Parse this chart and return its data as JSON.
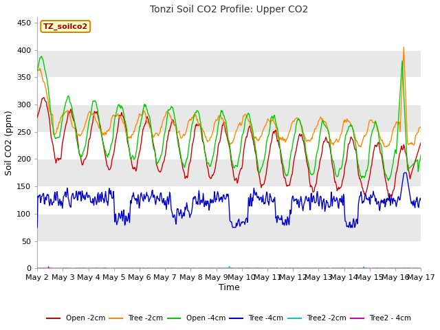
{
  "title": "Tonzi Soil CO2 Profile: Upper CO2",
  "xlabel": "Time",
  "ylabel": "Soil CO2 (ppm)",
  "annotation": "TZ_soilco2",
  "ylim": [
    0,
    460
  ],
  "yticks": [
    0,
    50,
    100,
    150,
    200,
    250,
    300,
    350,
    400,
    450
  ],
  "x_tick_labels": [
    "May 2",
    "May 3",
    "May 4",
    "May 5",
    "May 6",
    "May 7",
    "May 8",
    "May 9",
    "May 10",
    "May 11",
    "May 12",
    "May 13",
    "May 14",
    "May 15",
    "May 16",
    "May 17"
  ],
  "series": {
    "Open -2cm": {
      "color": "#cc0000",
      "lw": 1.0
    },
    "Tree -2cm": {
      "color": "#ff8800",
      "lw": 1.0
    },
    "Open -4cm": {
      "color": "#00cc00",
      "lw": 1.0
    },
    "Tree -4cm": {
      "color": "#0000cc",
      "lw": 1.0
    },
    "Tree2 -2cm": {
      "color": "#00cccc",
      "lw": 1.0
    },
    "Tree2 - 4cm": {
      "color": "#cc00cc",
      "lw": 1.0
    }
  },
  "band_colors": [
    "#ffffff",
    "#e8e8e8"
  ],
  "figsize": [
    6.4,
    4.8
  ],
  "dpi": 100,
  "n_points": 720
}
